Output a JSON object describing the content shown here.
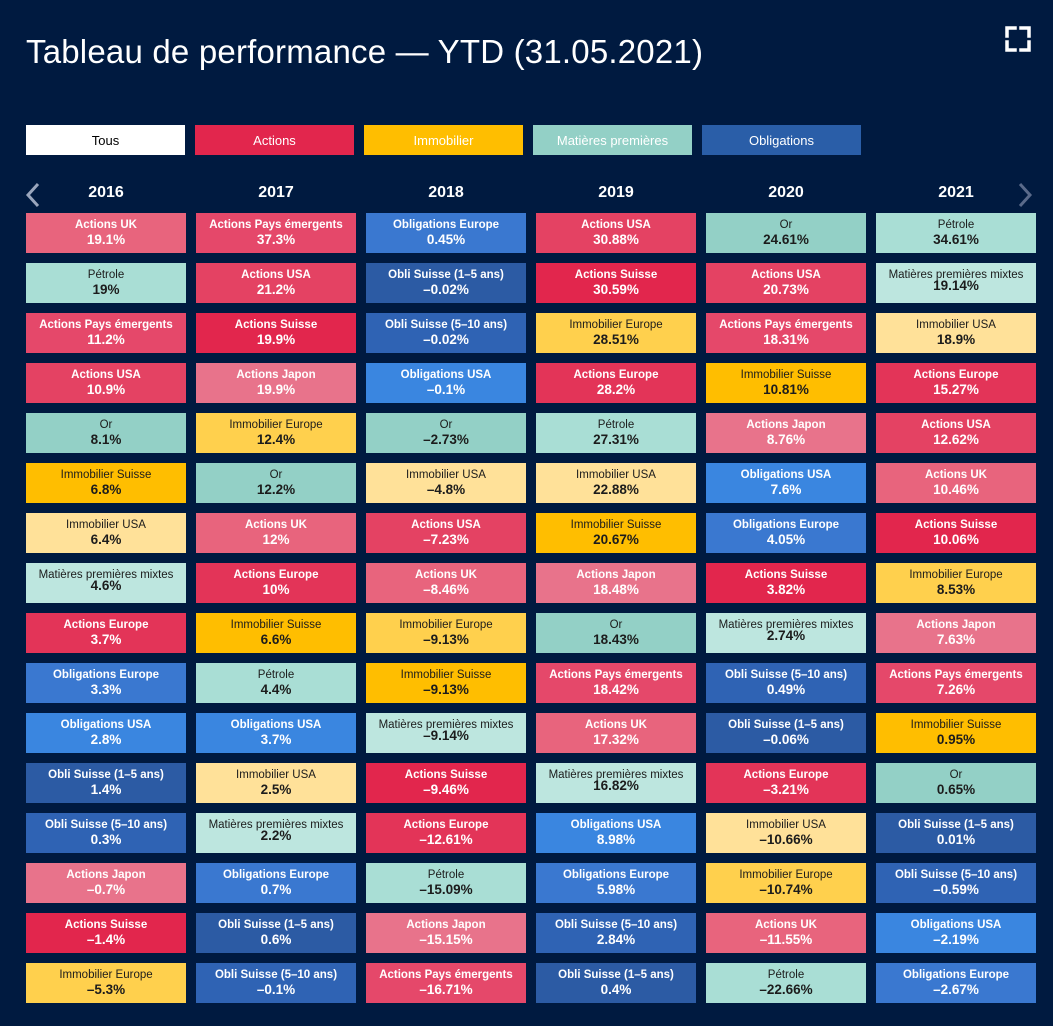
{
  "title": "Tableau de performance — YTD (31.05.2021)",
  "icons": {
    "fullscreen": "fullscreen-icon",
    "prev": "chevron-left-icon",
    "next": "chevron-right-icon"
  },
  "filters": [
    {
      "id": "all",
      "label": "Tous",
      "color": "#ffffff",
      "text_color": "#000000"
    },
    {
      "id": "actions",
      "label": "Actions",
      "color": "#e2264d",
      "text_color": "#ffffff"
    },
    {
      "id": "immobilier",
      "label": "Immobilier",
      "color": "#ffbe00",
      "text_color": "#ffffff"
    },
    {
      "id": "matieres",
      "label": "Matières premières",
      "color": "#93d0c6",
      "text_color": "#ffffff"
    },
    {
      "id": "obligations",
      "label": "Obligations",
      "color": "#2a5ea8",
      "text_color": "#ffffff"
    }
  ],
  "category_colors": {
    "Actions UK": "#e8647d",
    "Actions Pays émergents": "#e5486a",
    "Actions USA": "#e44263",
    "Actions Japon": "#e8738b",
    "Actions Suisse": "#e2264d",
    "Actions Europe": "#e33458",
    "Pétrole": "#a9ded5",
    "Or": "#93d0c6",
    "Matières premières mixtes": "#bde6df",
    "Immobilier Suisse": "#ffbe00",
    "Immobilier USA": "#ffe199",
    "Immobilier Europe": "#ffd04d",
    "Obligations Europe": "#3a78d0",
    "Obligations USA": "#3a86e0",
    "Obli Suisse (1–5 ans)": "#2c5ba4",
    "Obli Suisse (5–10 ans)": "#2f63b4"
  },
  "dark_text_categories": [
    "Pétrole",
    "Or",
    "Matières premières mixtes",
    "Immobilier Suisse",
    "Immobilier USA",
    "Immobilier Europe"
  ],
  "chart_data": {
    "type": "table",
    "title": "Tableau de performance — YTD (31.05.2021)",
    "unit": "%",
    "years": [
      "2016",
      "2017",
      "2018",
      "2019",
      "2020",
      "2021"
    ],
    "columns": [
      {
        "year": "2016",
        "items": [
          {
            "name": "Actions UK",
            "value": "19.1%"
          },
          {
            "name": "Pétrole",
            "value": "19%"
          },
          {
            "name": "Actions Pays émergents",
            "value": "11.2%"
          },
          {
            "name": "Actions USA",
            "value": "10.9%"
          },
          {
            "name": "Or",
            "value": "8.1%"
          },
          {
            "name": "Immobilier Suisse",
            "value": "6.8%"
          },
          {
            "name": "Immobilier USA",
            "value": "6.4%"
          },
          {
            "name": "Matières premières mixtes",
            "value": "4.6%"
          },
          {
            "name": "Actions Europe",
            "value": "3.7%"
          },
          {
            "name": "Obligations Europe",
            "value": "3.3%"
          },
          {
            "name": "Obligations USA",
            "value": "2.8%"
          },
          {
            "name": "Obli Suisse (1–5 ans)",
            "value": "1.4%"
          },
          {
            "name": "Obli Suisse (5–10 ans)",
            "value": "0.3%"
          },
          {
            "name": "Actions Japon",
            "value": "–0.7%"
          },
          {
            "name": "Actions Suisse",
            "value": "–1.4%"
          },
          {
            "name": "Immobilier Europe",
            "value": "–5.3%"
          }
        ]
      },
      {
        "year": "2017",
        "items": [
          {
            "name": "Actions Pays émergents",
            "value": "37.3%"
          },
          {
            "name": "Actions USA",
            "value": "21.2%"
          },
          {
            "name": "Actions Suisse",
            "value": "19.9%"
          },
          {
            "name": "Actions Japon",
            "value": "19.9%"
          },
          {
            "name": "Immobilier Europe",
            "value": "12.4%"
          },
          {
            "name": "Or",
            "value": "12.2%"
          },
          {
            "name": "Actions UK",
            "value": "12%"
          },
          {
            "name": "Actions Europe",
            "value": "10%"
          },
          {
            "name": "Immobilier Suisse",
            "value": "6.6%"
          },
          {
            "name": "Pétrole",
            "value": "4.4%"
          },
          {
            "name": "Obligations USA",
            "value": "3.7%"
          },
          {
            "name": "Immobilier USA",
            "value": "2.5%"
          },
          {
            "name": "Matières premières mixtes",
            "value": "2.2%"
          },
          {
            "name": "Obligations Europe",
            "value": "0.7%"
          },
          {
            "name": "Obli Suisse (1–5 ans)",
            "value": "0.6%"
          },
          {
            "name": "Obli Suisse (5–10 ans)",
            "value": "–0.1%"
          }
        ]
      },
      {
        "year": "2018",
        "items": [
          {
            "name": "Obligations Europe",
            "value": "0.45%"
          },
          {
            "name": "Obli Suisse (1–5 ans)",
            "value": "–0.02%"
          },
          {
            "name": "Obli Suisse (5–10 ans)",
            "value": "–0.02%"
          },
          {
            "name": "Obligations USA",
            "value": "–0.1%"
          },
          {
            "name": "Or",
            "value": "–2.73%"
          },
          {
            "name": "Immobilier USA",
            "value": "–4.8%"
          },
          {
            "name": "Actions USA",
            "value": "–7.23%"
          },
          {
            "name": "Actions UK",
            "value": "–8.46%"
          },
          {
            "name": "Immobilier Europe",
            "value": "–9.13%"
          },
          {
            "name": "Immobilier Suisse",
            "value": "–9.13%"
          },
          {
            "name": "Matières premières mixtes",
            "value": "–9.14%"
          },
          {
            "name": "Actions Suisse",
            "value": "–9.46%"
          },
          {
            "name": "Actions Europe",
            "value": "–12.61%"
          },
          {
            "name": "Pétrole",
            "value": "–15.09%"
          },
          {
            "name": "Actions Japon",
            "value": "–15.15%"
          },
          {
            "name": "Actions Pays émergents",
            "value": "–16.71%"
          }
        ]
      },
      {
        "year": "2019",
        "items": [
          {
            "name": "Actions USA",
            "value": "30.88%"
          },
          {
            "name": "Actions Suisse",
            "value": "30.59%"
          },
          {
            "name": "Immobilier Europe",
            "value": "28.51%"
          },
          {
            "name": "Actions Europe",
            "value": "28.2%"
          },
          {
            "name": "Pétrole",
            "value": "27.31%"
          },
          {
            "name": "Immobilier USA",
            "value": "22.88%"
          },
          {
            "name": "Immobilier Suisse",
            "value": "20.67%"
          },
          {
            "name": "Actions Japon",
            "value": "18.48%"
          },
          {
            "name": "Or",
            "value": "18.43%"
          },
          {
            "name": "Actions Pays émergents",
            "value": "18.42%"
          },
          {
            "name": "Actions UK",
            "value": "17.32%"
          },
          {
            "name": "Matières premières mixtes",
            "value": "16.82%"
          },
          {
            "name": "Obligations USA",
            "value": "8.98%"
          },
          {
            "name": "Obligations Europe",
            "value": "5.98%"
          },
          {
            "name": "Obli Suisse (5–10 ans)",
            "value": "2.84%"
          },
          {
            "name": "Obli Suisse (1–5 ans)",
            "value": "0.4%"
          }
        ]
      },
      {
        "year": "2020",
        "items": [
          {
            "name": "Or",
            "value": "24.61%"
          },
          {
            "name": "Actions USA",
            "value": "20.73%"
          },
          {
            "name": "Actions Pays émergents",
            "value": "18.31%"
          },
          {
            "name": "Immobilier Suisse",
            "value": "10.81%"
          },
          {
            "name": "Actions Japon",
            "value": "8.76%"
          },
          {
            "name": "Obligations USA",
            "value": "7.6%"
          },
          {
            "name": "Obligations Europe",
            "value": "4.05%"
          },
          {
            "name": "Actions Suisse",
            "value": "3.82%"
          },
          {
            "name": "Matières premières mixtes",
            "value": "2.74%"
          },
          {
            "name": "Obli Suisse (5–10 ans)",
            "value": "0.49%"
          },
          {
            "name": "Obli Suisse (1–5 ans)",
            "value": "–0.06%"
          },
          {
            "name": "Actions Europe",
            "value": "–3.21%"
          },
          {
            "name": "Immobilier USA",
            "value": "–10.66%"
          },
          {
            "name": "Immobilier Europe",
            "value": "–10.74%"
          },
          {
            "name": "Actions UK",
            "value": "–11.55%"
          },
          {
            "name": "Pétrole",
            "value": "–22.66%"
          }
        ]
      },
      {
        "year": "2021",
        "items": [
          {
            "name": "Pétrole",
            "value": "34.61%"
          },
          {
            "name": "Matières premières mixtes",
            "value": "19.14%"
          },
          {
            "name": "Immobilier USA",
            "value": "18.9%"
          },
          {
            "name": "Actions Europe",
            "value": "15.27%"
          },
          {
            "name": "Actions USA",
            "value": "12.62%"
          },
          {
            "name": "Actions UK",
            "value": "10.46%"
          },
          {
            "name": "Actions Suisse",
            "value": "10.06%"
          },
          {
            "name": "Immobilier Europe",
            "value": "8.53%"
          },
          {
            "name": "Actions Japon",
            "value": "7.63%"
          },
          {
            "name": "Actions Pays émergents",
            "value": "7.26%"
          },
          {
            "name": "Immobilier Suisse",
            "value": "0.95%"
          },
          {
            "name": "Or",
            "value": "0.65%"
          },
          {
            "name": "Obli Suisse (1–5 ans)",
            "value": "0.01%"
          },
          {
            "name": "Obli Suisse (5–10 ans)",
            "value": "–0.59%"
          },
          {
            "name": "Obligations USA",
            "value": "–2.19%"
          },
          {
            "name": "Obligations Europe",
            "value": "–2.67%"
          }
        ]
      }
    ]
  }
}
